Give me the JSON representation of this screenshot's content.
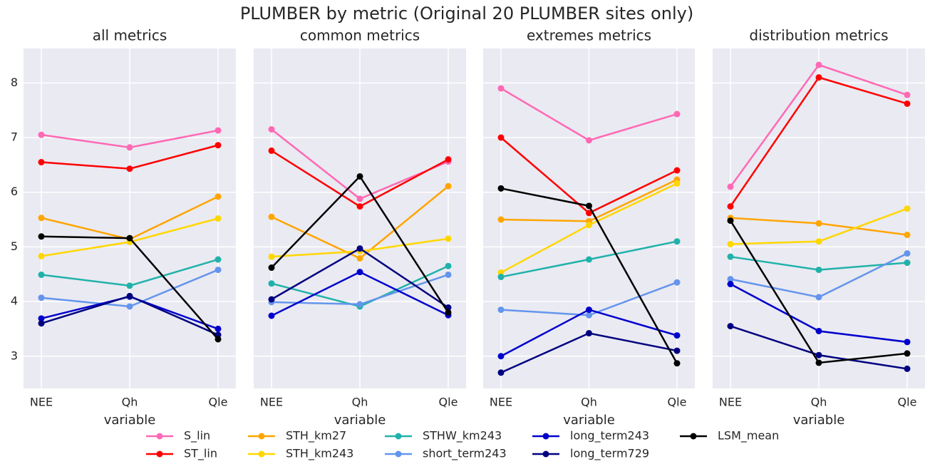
{
  "title": "PLUMBER by metric (Original 20 PLUMBER sites only)",
  "chart_data": [
    {
      "type": "line",
      "title": "all metrics",
      "xlabel": "variable",
      "categories": [
        "NEE",
        "Qh",
        "Qle"
      ],
      "ylim": [
        2.41,
        8.63
      ],
      "yticks": [
        3,
        4,
        5,
        6,
        7,
        8
      ],
      "grid": true,
      "series": [
        {
          "name": "S_lin",
          "color": "#ff69b4",
          "values": [
            7.05,
            6.82,
            7.13
          ]
        },
        {
          "name": "ST_lin",
          "color": "#ff0000",
          "values": [
            6.55,
            6.43,
            6.86
          ]
        },
        {
          "name": "STH_km27",
          "color": "#ffa500",
          "values": [
            5.53,
            5.14,
            5.92
          ]
        },
        {
          "name": "STH_km243",
          "color": "#ffd700",
          "values": [
            4.83,
            5.09,
            5.52
          ]
        },
        {
          "name": "STHW_km243",
          "color": "#20b2aa",
          "values": [
            4.49,
            4.29,
            4.77
          ]
        },
        {
          "name": "short_term243",
          "color": "#6495ed",
          "values": [
            4.07,
            3.91,
            4.58
          ]
        },
        {
          "name": "long_term243",
          "color": "#0000cd",
          "values": [
            3.69,
            4.09,
            3.5
          ]
        },
        {
          "name": "long_term729",
          "color": "#000080",
          "values": [
            3.6,
            4.1,
            3.39
          ]
        },
        {
          "name": "LSM_mean",
          "color": "#000000",
          "values": [
            5.19,
            5.16,
            3.31
          ]
        }
      ]
    },
    {
      "type": "line",
      "title": "common metrics",
      "xlabel": "variable",
      "categories": [
        "NEE",
        "Qh",
        "Qle"
      ],
      "ylim": [
        2.41,
        8.63
      ],
      "yticks": [
        3,
        4,
        5,
        6,
        7,
        8
      ],
      "grid": true,
      "series": [
        {
          "name": "S_lin",
          "color": "#ff69b4",
          "values": [
            7.15,
            5.88,
            6.56
          ]
        },
        {
          "name": "ST_lin",
          "color": "#ff0000",
          "values": [
            6.76,
            5.74,
            6.6
          ]
        },
        {
          "name": "STH_km27",
          "color": "#ffa500",
          "values": [
            5.55,
            4.79,
            6.11
          ]
        },
        {
          "name": "STH_km243",
          "color": "#ffd700",
          "values": [
            4.82,
            4.92,
            5.15
          ]
        },
        {
          "name": "STHW_km243",
          "color": "#20b2aa",
          "values": [
            4.33,
            3.91,
            4.65
          ]
        },
        {
          "name": "short_term243",
          "color": "#6495ed",
          "values": [
            3.99,
            3.95,
            4.49
          ]
        },
        {
          "name": "long_term243",
          "color": "#0000cd",
          "values": [
            3.74,
            4.54,
            3.75
          ]
        },
        {
          "name": "long_term729",
          "color": "#000080",
          "values": [
            4.04,
            4.97,
            3.89
          ]
        },
        {
          "name": "LSM_mean",
          "color": "#000000",
          "values": [
            4.62,
            6.29,
            3.8
          ]
        }
      ]
    },
    {
      "type": "line",
      "title": "extremes metrics",
      "xlabel": "variable",
      "categories": [
        "NEE",
        "Qh",
        "Qle"
      ],
      "ylim": [
        2.41,
        8.63
      ],
      "yticks": [
        3,
        4,
        5,
        6,
        7,
        8
      ],
      "grid": true,
      "series": [
        {
          "name": "S_lin",
          "color": "#ff69b4",
          "values": [
            7.9,
            6.95,
            7.43
          ]
        },
        {
          "name": "ST_lin",
          "color": "#ff0000",
          "values": [
            7.0,
            5.62,
            6.4
          ]
        },
        {
          "name": "STH_km27",
          "color": "#ffa500",
          "values": [
            5.5,
            5.47,
            6.23
          ]
        },
        {
          "name": "STH_km243",
          "color": "#ffd700",
          "values": [
            4.53,
            5.4,
            6.16
          ]
        },
        {
          "name": "STHW_km243",
          "color": "#20b2aa",
          "values": [
            4.45,
            4.77,
            5.1
          ]
        },
        {
          "name": "short_term243",
          "color": "#6495ed",
          "values": [
            3.85,
            3.75,
            4.35
          ]
        },
        {
          "name": "long_term243",
          "color": "#0000cd",
          "values": [
            3.0,
            3.85,
            3.38
          ]
        },
        {
          "name": "long_term729",
          "color": "#000080",
          "values": [
            2.7,
            3.42,
            3.1
          ]
        },
        {
          "name": "LSM_mean",
          "color": "#000000",
          "values": [
            6.07,
            5.75,
            2.87
          ]
        }
      ]
    },
    {
      "type": "line",
      "title": "distribution metrics",
      "xlabel": "variable",
      "categories": [
        "NEE",
        "Qh",
        "Qle"
      ],
      "ylim": [
        2.41,
        8.63
      ],
      "yticks": [
        3,
        4,
        5,
        6,
        7,
        8
      ],
      "grid": true,
      "series": [
        {
          "name": "S_lin",
          "color": "#ff69b4",
          "values": [
            6.1,
            8.33,
            7.78
          ]
        },
        {
          "name": "ST_lin",
          "color": "#ff0000",
          "values": [
            5.74,
            8.1,
            7.62
          ]
        },
        {
          "name": "STH_km27",
          "color": "#ffa500",
          "values": [
            5.53,
            5.43,
            5.22
          ]
        },
        {
          "name": "STH_km243",
          "color": "#ffd700",
          "values": [
            5.05,
            5.1,
            5.7
          ]
        },
        {
          "name": "STHW_km243",
          "color": "#20b2aa",
          "values": [
            4.82,
            4.58,
            4.71
          ]
        },
        {
          "name": "short_term243",
          "color": "#6495ed",
          "values": [
            4.41,
            4.08,
            4.88
          ]
        },
        {
          "name": "long_term243",
          "color": "#0000cd",
          "values": [
            4.32,
            3.46,
            3.26
          ]
        },
        {
          "name": "long_term729",
          "color": "#000080",
          "values": [
            3.55,
            3.02,
            2.77
          ]
        },
        {
          "name": "LSM_mean",
          "color": "#000000",
          "values": [
            5.48,
            2.88,
            3.05
          ]
        }
      ]
    }
  ]
}
